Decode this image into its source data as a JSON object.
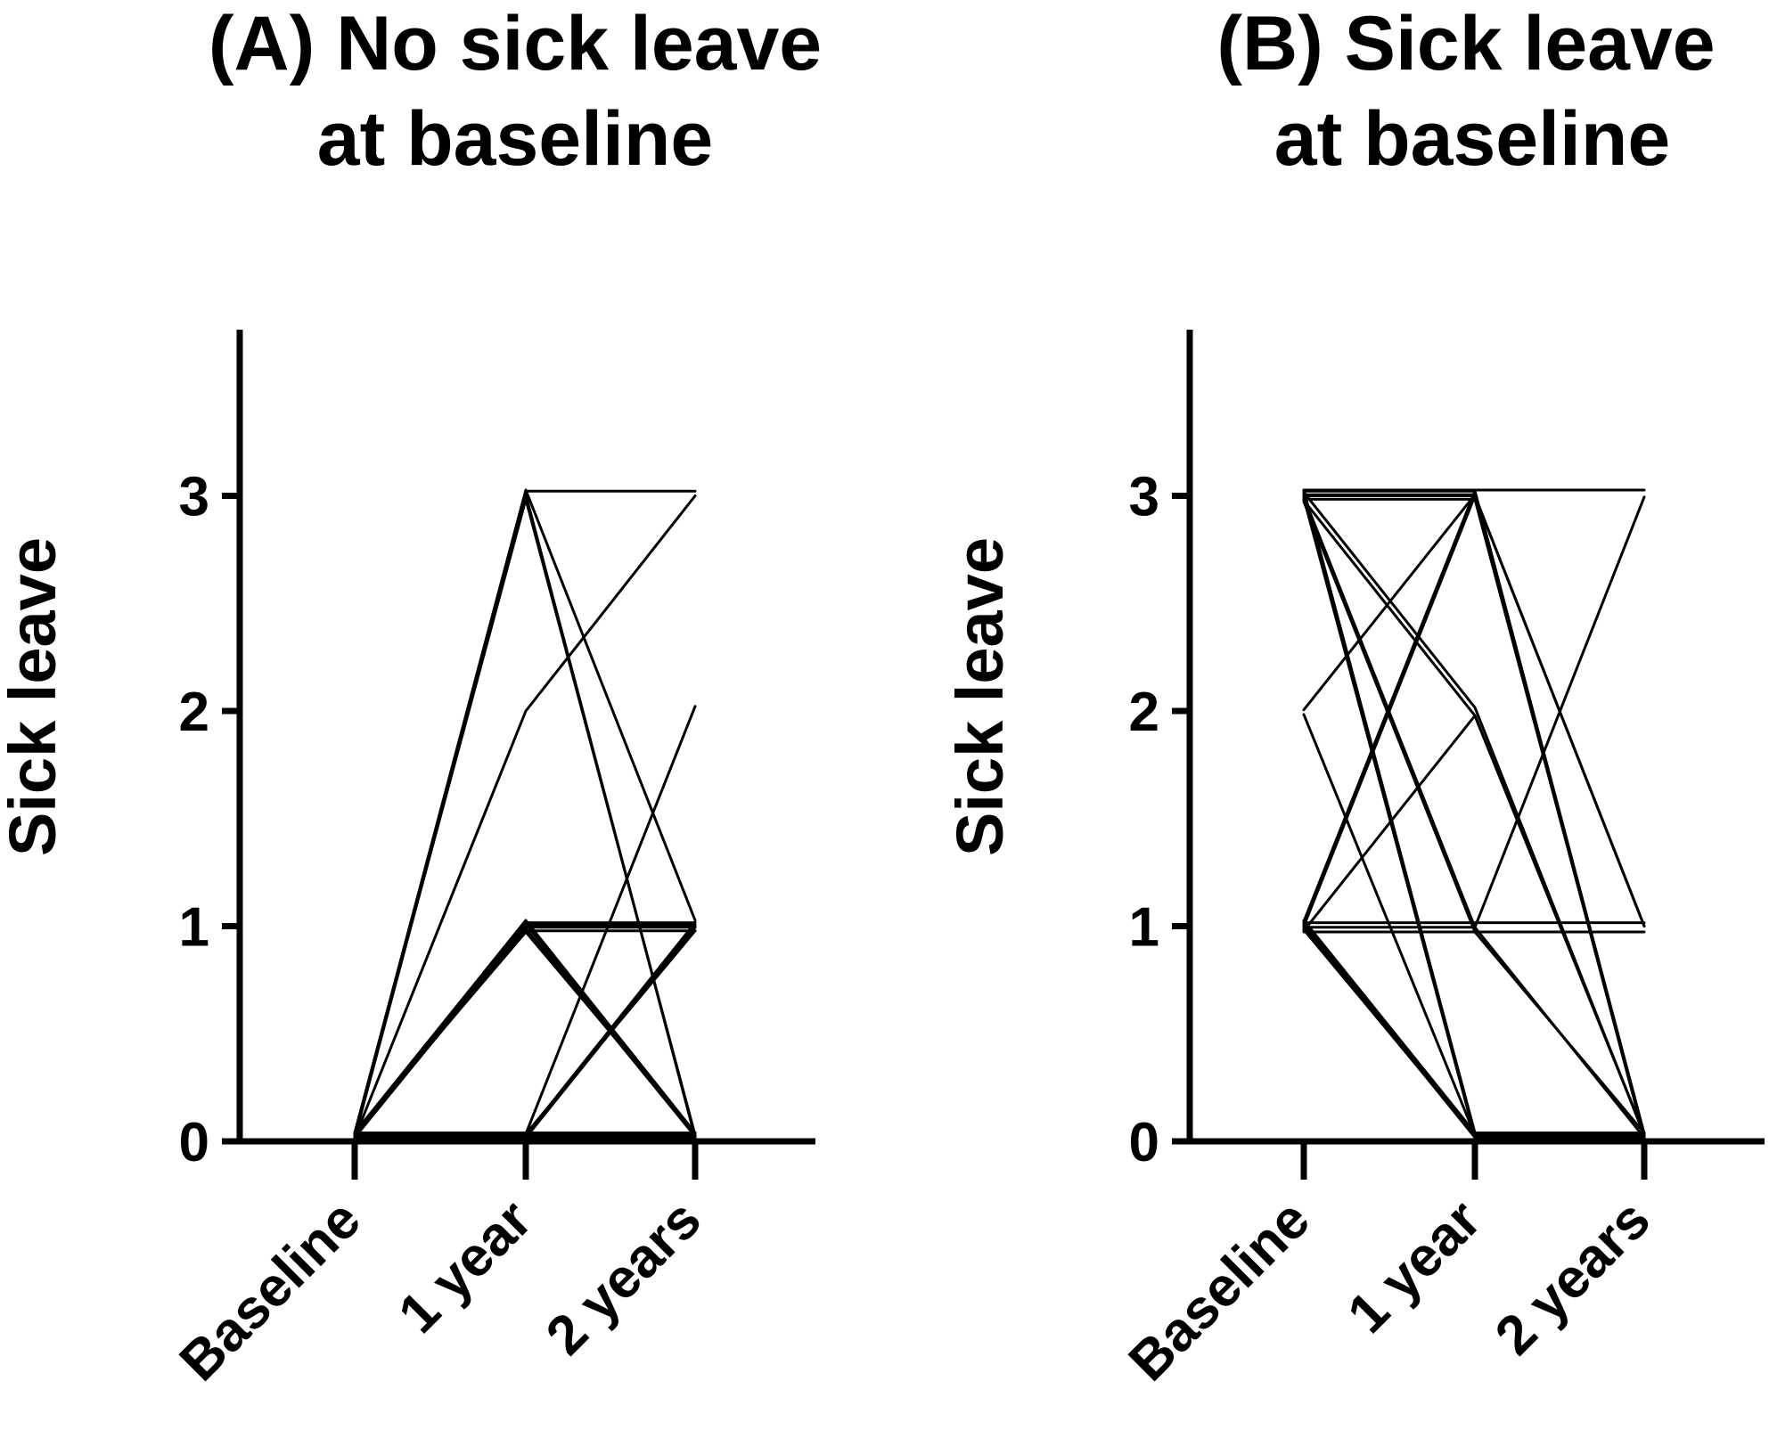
{
  "chart_data": [
    {
      "type": "line",
      "title_lines": [
        "(A) No sick leave",
        "at baseline"
      ],
      "ylabel": "Sick leave",
      "xlabel": "",
      "categories": [
        "Baseline",
        "1 year",
        "2 years"
      ],
      "yticks": [
        "0",
        "1",
        "2",
        "3"
      ],
      "ylim": [
        0,
        3.7
      ],
      "series": [
        {
          "values": [
            0,
            3,
            1
          ]
        },
        {
          "values": [
            0,
            3,
            0
          ]
        },
        {
          "values": [
            0,
            3,
            0
          ]
        },
        {
          "values": [
            0,
            3,
            3
          ]
        },
        {
          "values": [
            0,
            2,
            3
          ]
        },
        {
          "values": [
            0,
            1,
            1
          ]
        },
        {
          "values": [
            0,
            1,
            1
          ]
        },
        {
          "values": [
            0,
            1,
            1
          ]
        },
        {
          "values": [
            0,
            1,
            0
          ]
        },
        {
          "values": [
            0,
            1,
            0
          ]
        },
        {
          "values": [
            0,
            1,
            0
          ]
        },
        {
          "values": [
            0,
            1,
            0
          ]
        },
        {
          "values": [
            0,
            1,
            1
          ]
        },
        {
          "values": [
            0,
            1,
            0
          ]
        },
        {
          "values": [
            0,
            0,
            2
          ]
        },
        {
          "values": [
            0,
            0,
            1
          ]
        },
        {
          "values": [
            0,
            0,
            1
          ]
        },
        {
          "values": [
            0,
            0,
            1
          ]
        },
        {
          "values": [
            0,
            0,
            1
          ]
        },
        {
          "values": [
            0,
            0,
            0
          ]
        },
        {
          "values": [
            0,
            0,
            0
          ]
        },
        {
          "values": [
            0,
            0,
            0
          ]
        },
        {
          "values": [
            0,
            0,
            0
          ]
        },
        {
          "values": [
            0,
            0,
            0
          ]
        },
        {
          "values": [
            0,
            0,
            0
          ]
        }
      ]
    },
    {
      "type": "line",
      "title_lines": [
        "(B) Sick leave",
        "at baseline"
      ],
      "ylabel": "Sick leave",
      "xlabel": "",
      "categories": [
        "Baseline",
        "1 year",
        "2 years"
      ],
      "yticks": [
        "0",
        "1",
        "2",
        "3"
      ],
      "ylim": [
        0,
        3.7
      ],
      "series": [
        {
          "values": [
            3,
            3,
            3
          ]
        },
        {
          "values": [
            3,
            3,
            0
          ]
        },
        {
          "values": [
            3,
            3,
            0
          ]
        },
        {
          "values": [
            3,
            3,
            0
          ]
        },
        {
          "values": [
            3,
            3,
            1
          ]
        },
        {
          "values": [
            3,
            2,
            0
          ]
        },
        {
          "values": [
            3,
            2,
            0
          ]
        },
        {
          "values": [
            3,
            1,
            0
          ]
        },
        {
          "values": [
            3,
            1,
            1
          ]
        },
        {
          "values": [
            3,
            0,
            0
          ]
        },
        {
          "values": [
            3,
            0,
            0
          ]
        },
        {
          "values": [
            3,
            0,
            0
          ]
        },
        {
          "values": [
            2,
            3,
            0
          ]
        },
        {
          "values": [
            2,
            0,
            0
          ]
        },
        {
          "values": [
            1,
            3,
            0
          ]
        },
        {
          "values": [
            1,
            3,
            1
          ]
        },
        {
          "values": [
            1,
            2,
            0
          ]
        },
        {
          "values": [
            1,
            1,
            1
          ]
        },
        {
          "values": [
            1,
            1,
            3
          ]
        },
        {
          "values": [
            1,
            1,
            0
          ]
        },
        {
          "values": [
            1,
            0,
            0
          ]
        },
        {
          "values": [
            1,
            0,
            0
          ]
        },
        {
          "values": [
            1,
            0,
            0
          ]
        },
        {
          "values": [
            1,
            0,
            0
          ]
        },
        {
          "values": [
            1,
            0,
            0
          ]
        }
      ]
    }
  ]
}
